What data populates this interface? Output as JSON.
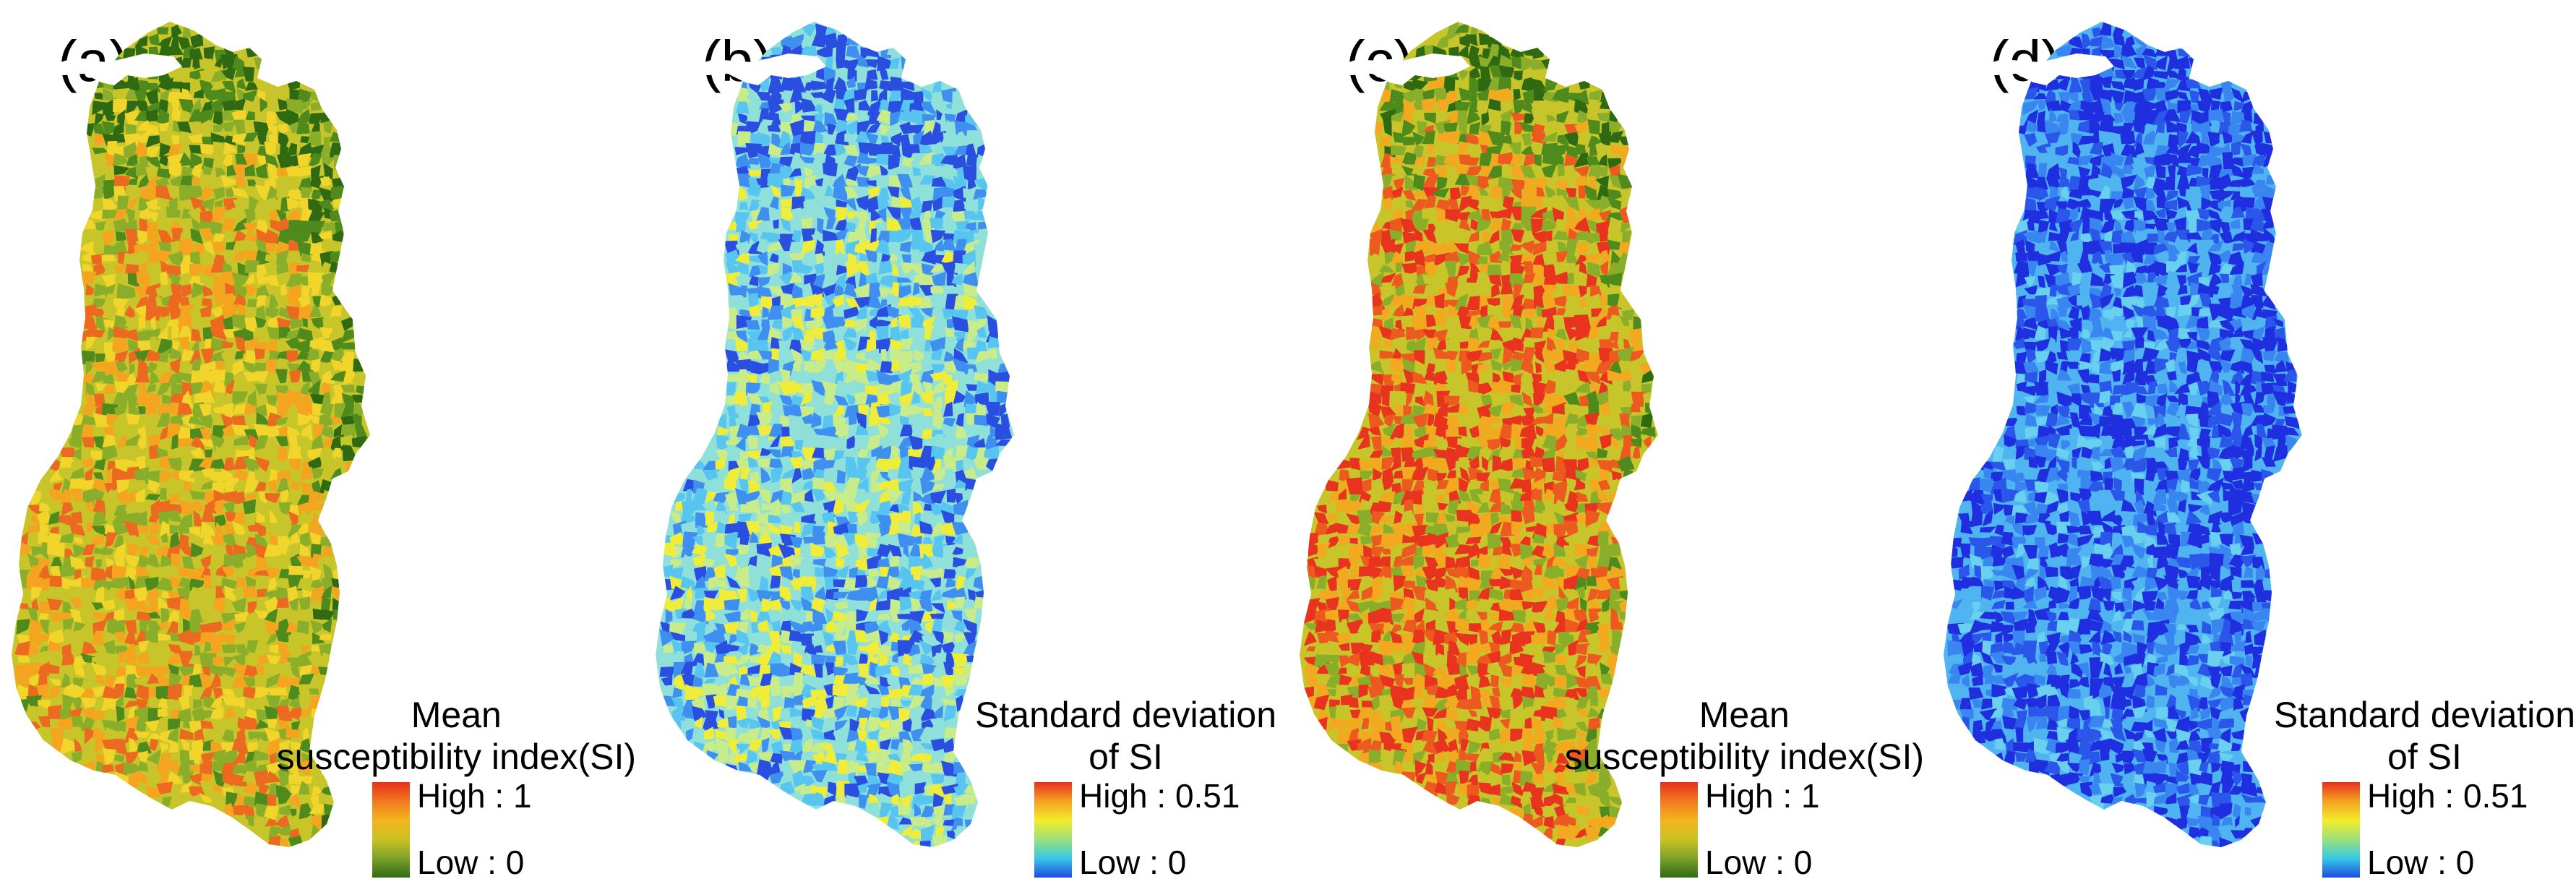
{
  "panels": [
    {
      "id": "a",
      "label": "(a)",
      "variable": "mean",
      "legend": {
        "title_line1": "Mean",
        "title_line2": "susceptibility index(SI)",
        "high": "High : 1",
        "low": "Low : 0",
        "ramp_colors": [
          "#e8301f",
          "#f07a1e",
          "#f4b41e",
          "#c9c222",
          "#7ca22a",
          "#2f6a13"
        ]
      },
      "palette": [
        "#2f6a13",
        "#4f8a1c",
        "#8aae2a",
        "#c7c52a",
        "#f2d52a",
        "#f4a41f",
        "#ec6a20"
      ]
    },
    {
      "id": "b",
      "label": "(b)",
      "variable": "std",
      "legend": {
        "title_line1": "Standard deviation",
        "title_line2": "of SI",
        "high": "High : 0.51",
        "low": "Low : 0",
        "ramp_colors": [
          "#e8301f",
          "#f4a21f",
          "#f5ec2a",
          "#9be07a",
          "#38c8e8",
          "#1f4be0"
        ]
      },
      "palette": [
        "#2a4fe0",
        "#3f8ff0",
        "#58c4f0",
        "#8fe0d8",
        "#c8ec8a",
        "#f0ec3a",
        "#f2b62a"
      ]
    },
    {
      "id": "c",
      "label": "(c)",
      "variable": "mean",
      "legend": {
        "title_line1": "Mean",
        "title_line2": "susceptibility index(SI)",
        "high": "High : 1",
        "low": "Low : 0",
        "ramp_colors": [
          "#e8301f",
          "#f07a1e",
          "#f4b41e",
          "#c9c222",
          "#7ca22a",
          "#2f6a13"
        ]
      },
      "palette": [
        "#2f6a13",
        "#4f8a1c",
        "#8aae2a",
        "#c7c52a",
        "#f2a81f",
        "#ec5a20",
        "#e8341f"
      ]
    },
    {
      "id": "d",
      "label": "(d)",
      "variable": "std",
      "legend": {
        "title_line1": "Standard deviation",
        "title_line2": "of SI",
        "high": "High : 0.51",
        "low": "Low : 0",
        "ramp_colors": [
          "#e8301f",
          "#f4a21f",
          "#f5ec2a",
          "#9be07a",
          "#38c8e8",
          "#1f4be0"
        ]
      },
      "palette": [
        "#1f2fe0",
        "#2a56ea",
        "#3a86f0",
        "#4fb4f0",
        "#6ad0f0",
        "#a8e8c0",
        "#e8ec4a"
      ]
    }
  ]
}
